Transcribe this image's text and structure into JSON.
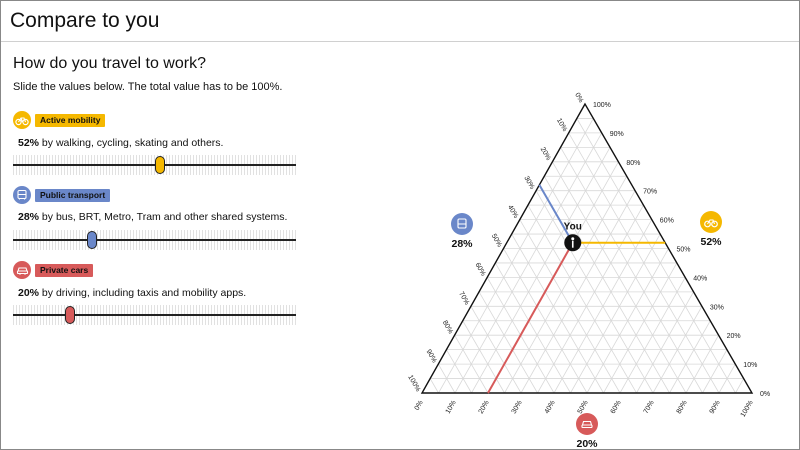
{
  "header": {
    "title": "Compare to you"
  },
  "question": "How do you travel to work?",
  "instructions": "Slide the values below. The total value has to be 100%.",
  "colors": {
    "active": "#f5b800",
    "public": "#6a87c9",
    "private": "#d75a5a"
  },
  "modes": [
    {
      "key": "active",
      "icon": "bicycle-icon",
      "label": "Active mobility",
      "value": 52,
      "value_text": "52%",
      "desc": " by walking, cycling, skating and others."
    },
    {
      "key": "public",
      "icon": "bus-icon",
      "label": "Public transport",
      "value": 28,
      "value_text": "28%",
      "desc": " by bus, BRT, Metro, Tram and other shared systems."
    },
    {
      "key": "private",
      "icon": "car-icon",
      "label": "Private cars",
      "value": 20,
      "value_text": "20%",
      "desc": " by driving, including taxis and mobility apps."
    }
  ],
  "ternary": {
    "you_label": "You",
    "active_value": "52%",
    "public_value": "28%",
    "private_value": "20%",
    "ticks": [
      "0%",
      "10%",
      "20%",
      "30%",
      "40%",
      "50%",
      "60%",
      "70%",
      "80%",
      "90%",
      "100%"
    ]
  }
}
